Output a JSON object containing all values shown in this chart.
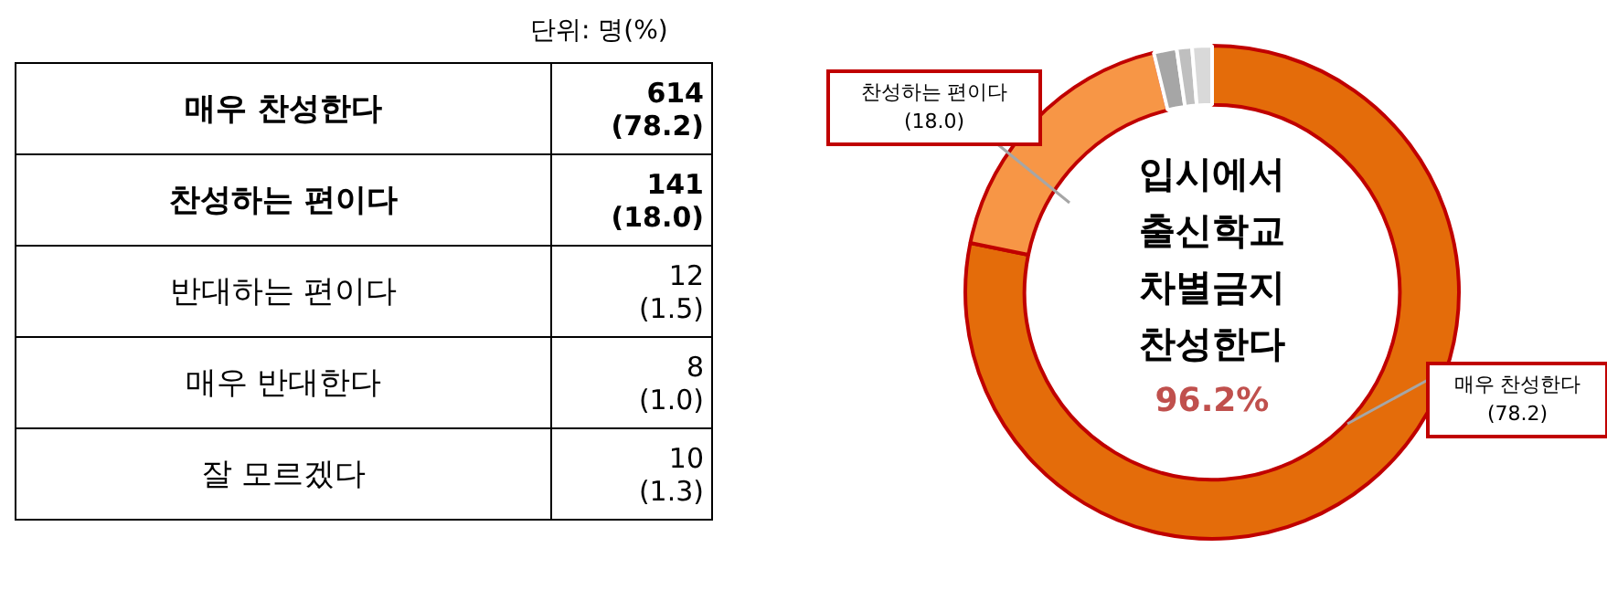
{
  "chart_data": [
    {
      "type": "other",
      "annotations": [
        "단위: 명(%)",
        "매우 찬성한다",
        "614\n(78.2)",
        "찬성하는 편이다",
        "141\n(18.0)",
        "반대하는 편이다",
        "12\n(1.5)",
        "매우 반대한다",
        "8\n(1.0)",
        "잘 모르겠다",
        "10\n(1.3)"
      ]
    },
    {
      "type": "donut",
      "title": "입시에서\n출신학교\n차별금지\n찬성한다",
      "categories": [
        "매우 찬성한다",
        "찬성하는 편이다",
        null,
        null,
        null
      ],
      "values": [
        78.2,
        18.0,
        1.5,
        1.0,
        1.3
      ],
      "colors": [
        "#e46c0a",
        "#f79646",
        "#a6a6a6",
        "#bfbfbf",
        "#d9d9d9"
      ],
      "value_labels": [
        "(78.2)",
        "(18.0)",
        null,
        null,
        null
      ],
      "annotations": [
        "96.2%"
      ]
    }
  ]
}
